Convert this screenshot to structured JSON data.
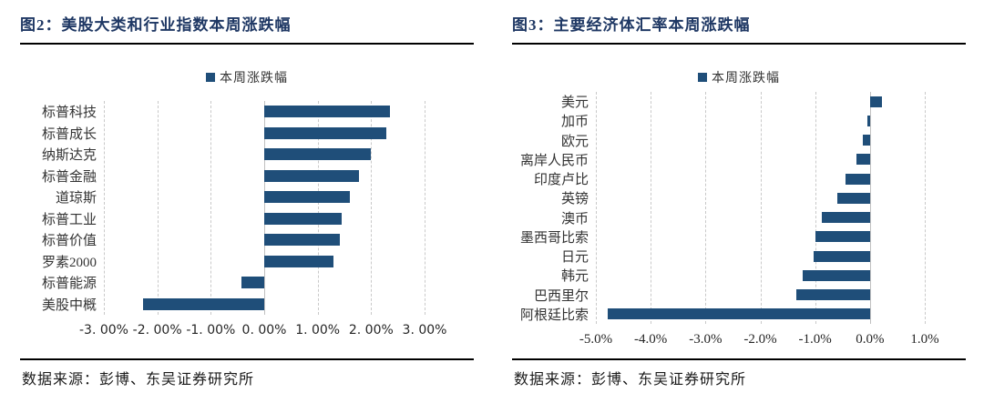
{
  "chart_data": [
    {
      "type": "bar",
      "orientation": "horizontal",
      "title": "图2：美股大类和行业指数本周涨跌幅",
      "legend": "本周涨跌幅",
      "source": "数据来源：彭博、东吴证券研究所",
      "categories": [
        "标普科技",
        "标普成长",
        "纳斯达克",
        "标普金融",
        "道琼斯",
        "标普工业",
        "标普价值",
        "罗素2000",
        "标普能源",
        "美股中概"
      ],
      "values": [
        2.35,
        2.28,
        2.0,
        1.78,
        1.6,
        1.45,
        1.42,
        1.3,
        -0.42,
        -2.26
      ],
      "xlim": [
        -3,
        3
      ],
      "xtick_values": [
        -3,
        -2,
        -1,
        0,
        1,
        2,
        3
      ],
      "xticks": [
        "-3. 00%",
        "-2. 00%",
        "-1. 00%",
        "0. 00%",
        "1. 00%",
        "2. 00%",
        "3. 00%"
      ],
      "bar_color": "#1f4e79",
      "grid": "vertical-dashed",
      "legend_position": "top-center"
    },
    {
      "type": "bar",
      "orientation": "horizontal",
      "title": "图3：主要经济体汇率本周涨跌幅",
      "legend": "本周涨跌幅",
      "source": "数据来源：彭博、东吴证券研究所",
      "categories": [
        "美元",
        "加币",
        "欧元",
        "离岸人民币",
        "印度卢比",
        "英镑",
        "澳币",
        "墨西哥比索",
        "日元",
        "韩元",
        "巴西里尔",
        "阿根廷比索"
      ],
      "values": [
        0.22,
        -0.05,
        -0.13,
        -0.25,
        -0.44,
        -0.59,
        -0.87,
        -1.0,
        -1.03,
        -1.22,
        -1.35,
        -4.79
      ],
      "xlim": [
        -5,
        1
      ],
      "xtick_values": [
        -5,
        -4,
        -3,
        -2,
        -1,
        0,
        1
      ],
      "xticks": [
        "-5.0%",
        "-4.0%",
        "-3.0%",
        "-2.0%",
        "-1.0%",
        "0.0%",
        "1.0%"
      ],
      "bar_color": "#1f4e79",
      "grid": "vertical-dashed",
      "legend_position": "top-center"
    }
  ],
  "theme": {
    "title_color": "#1f3864",
    "bar_color": "#1f4e79",
    "gridline_color": "#c9c9c9",
    "zero_line_color": "#c0c0c0"
  }
}
